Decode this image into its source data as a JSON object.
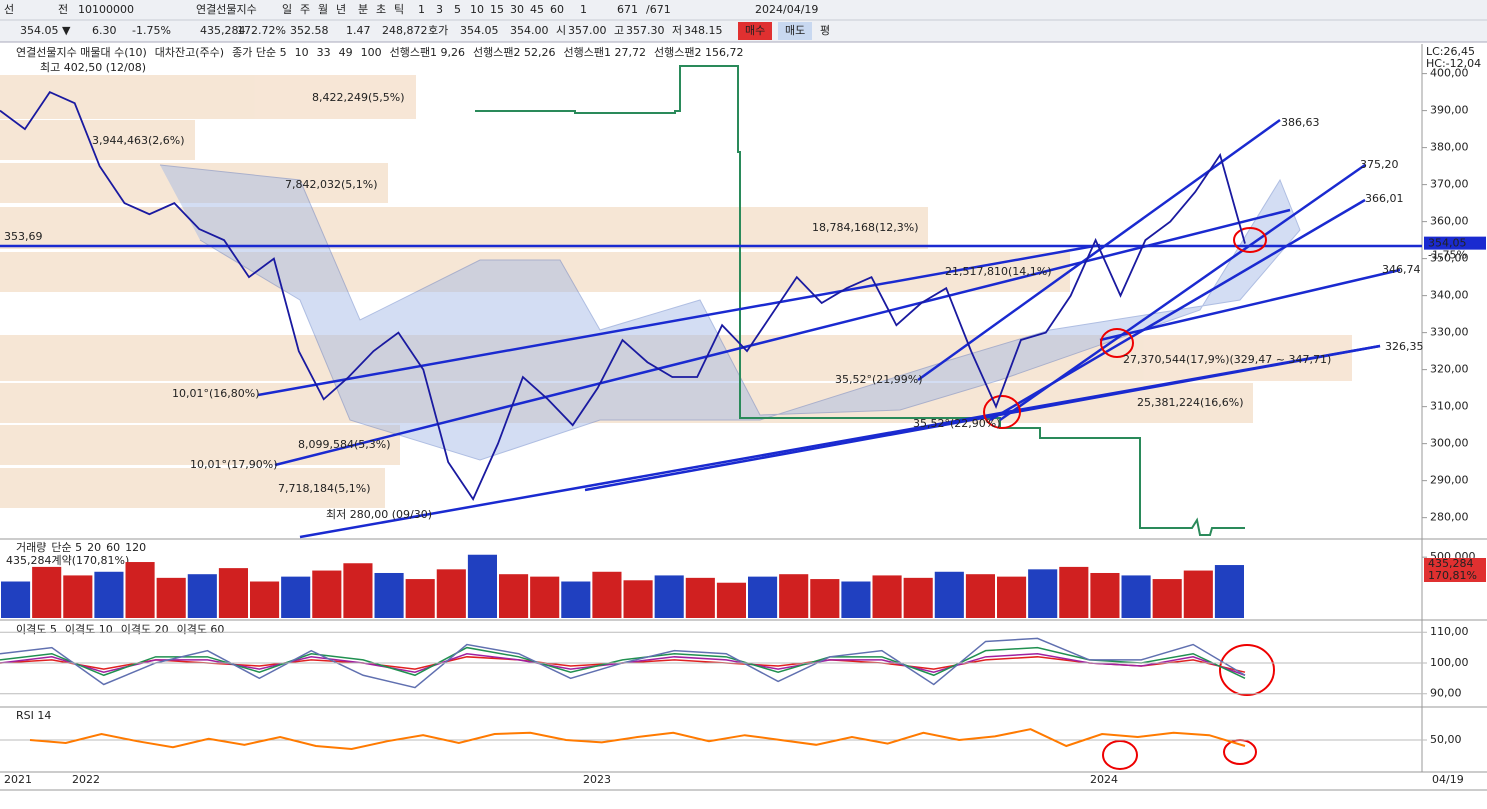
{
  "toolbar": {
    "items": [
      "선",
      "전",
      "10100000",
      "연결선물지수",
      "일",
      "주",
      "월",
      "년",
      "분",
      "초",
      "틱",
      "1",
      "3",
      "5",
      "10",
      "15",
      "30",
      "45",
      "60",
      "1",
      "671",
      "/671",
      "2024/04/19",
      "매수",
      "매도",
      "평"
    ]
  },
  "quote_bar": {
    "items": [
      "354.05 ▼",
      "6.30",
      "-1.75%",
      "435,284",
      "172.72%",
      "352.58",
      "1.47",
      "248,872",
      "호가",
      "354.05",
      "354.00",
      "시",
      "357.00",
      "고",
      "357.30",
      "저",
      "348.15"
    ]
  },
  "price_panel": {
    "legend": [
      {
        "text": "연결선물지수 매물대 수(10)",
        "color": "#222"
      },
      {
        "text": "대차잔고(주수)",
        "color": "#1a8a4a"
      },
      {
        "text": "종가 단순 5",
        "color": "#a020a0"
      },
      {
        "text": "10",
        "color": "#1a1aa0"
      },
      {
        "text": "33",
        "color": "#d0a000"
      },
      {
        "text": "49",
        "color": "#209030"
      },
      {
        "text": "100",
        "color": "#777"
      },
      {
        "text": "선행스팬1 9,26",
        "color": "#e08050"
      },
      {
        "text": "선행스팬2 52,26",
        "color": "#5070c0"
      },
      {
        "text": "선행스팬1 27,72",
        "color": "#e08050"
      },
      {
        "text": "선행스팬2 156,72",
        "color": "#5070c0"
      }
    ],
    "corner": [
      "LC:26,45",
      "HC:-12,04"
    ],
    "ylim": [
      274.5,
      408
    ],
    "yticks": [
      {
        "value": 400,
        "label": "400,00"
      },
      {
        "value": 390,
        "label": "390,00"
      },
      {
        "value": 380,
        "label": "380,00"
      },
      {
        "value": 370,
        "label": "370,00"
      },
      {
        "value": 360,
        "label": "360,00"
      },
      {
        "value": 350,
        "label": "350,00"
      },
      {
        "value": 340,
        "label": "340,00"
      },
      {
        "value": 330,
        "label": "330,00"
      },
      {
        "value": 320,
        "label": "320,00"
      },
      {
        "value": 310,
        "label": "310,00"
      },
      {
        "value": 300,
        "label": "300,00"
      },
      {
        "value": 290,
        "label": "290,00"
      },
      {
        "value": 280,
        "label": "280,00"
      }
    ],
    "close": {
      "color": "#1a1aa0",
      "values": [
        390,
        385,
        395,
        392,
        375,
        365,
        362,
        365,
        358,
        355,
        345,
        350,
        325,
        312,
        318,
        325,
        330,
        320,
        295,
        285,
        300,
        318,
        312,
        305,
        315,
        328,
        322,
        318,
        318,
        332,
        325,
        335,
        345,
        338,
        342,
        345,
        332,
        338,
        342,
        325,
        310,
        328,
        330,
        340,
        355,
        340,
        355,
        360,
        368,
        378,
        354.05
      ]
    },
    "last_price": {
      "value": 354.05,
      "label": "354,05",
      "change": "-1,75%"
    },
    "high_label": "최고 402,50 (12/08)",
    "low_label": "최저 280,00 (09/30)",
    "profile_labels": [
      "8,422,249(5,5%)",
      "3,944,463(2,6%)",
      "7,842,032(5,1%)",
      "18,784,168(12,3%)",
      "21,517,810(14,1%)",
      "27,370,544(17,9%)(329,47 ~ 347,71)",
      "25,381,224(16,6%)",
      "8,099,584(5,3%)",
      "7,718,184(5,1%)"
    ],
    "line_labels": [
      "386,63",
      "375,20",
      "366,01",
      "346,74",
      "326,35",
      "353,69",
      "10,01°(16,80%)",
      "10,01°(17,90%)",
      "35,52°(21,99%)",
      "35,52°(22,90%)"
    ]
  },
  "volume_panel": {
    "legend": [
      "거래량",
      "단순 5",
      "20",
      "60",
      "120"
    ],
    "summary": "435,284계약(170,81%)",
    "box": [
      "435,284",
      "170,81%"
    ],
    "ylim": [
      0,
      600000
    ],
    "yticks": [
      {
        "value": 500000,
        "label": "500,000"
      }
    ],
    "values": [
      300000,
      420000,
      350000,
      380000,
      460000,
      330000,
      360000,
      410000,
      300000,
      340000,
      390000,
      450000,
      370000,
      320000,
      400000,
      520000,
      360000,
      340000,
      300000,
      380000,
      310000,
      350000,
      330000,
      290000,
      340000,
      360000,
      320000,
      300000,
      350000,
      330000,
      380000,
      360000,
      340000,
      400000,
      420000,
      370000,
      350000,
      320000,
      390000,
      435284
    ]
  },
  "disparity_panel": {
    "ylim": [
      86,
      113
    ],
    "yticks": [
      {
        "value": 110,
        "label": "110,00"
      },
      {
        "value": 100,
        "label": "100,00"
      },
      {
        "value": 90,
        "label": "90,00"
      }
    ],
    "series": [
      {
        "name": "이격도 5",
        "color": "#e02020",
        "values": [
          100,
          101,
          98,
          101,
          100,
          99,
          101,
          100,
          98,
          102,
          101,
          99,
          100,
          101,
          100,
          99,
          101,
          100,
          98,
          101,
          102,
          100,
          99,
          101,
          97
        ]
      },
      {
        "name": "이격도 10",
        "color": "#a020a0",
        "values": [
          100,
          102,
          97,
          101,
          101,
          98,
          102,
          100,
          97,
          103,
          101,
          98,
          100,
          102,
          101,
          98,
          101,
          101,
          97,
          102,
          103,
          100,
          99,
          102,
          96
        ]
      },
      {
        "name": "이격도 20",
        "color": "#209050",
        "values": [
          101,
          103,
          96,
          102,
          102,
          97,
          103,
          101,
          96,
          105,
          102,
          97,
          101,
          103,
          102,
          97,
          102,
          102,
          96,
          104,
          105,
          101,
          100,
          103,
          95
        ]
      },
      {
        "name": "이격도 60",
        "color": "#6070b0",
        "values": [
          103,
          105,
          93,
          100,
          104,
          95,
          104,
          96,
          92,
          106,
          103,
          95,
          100,
          104,
          103,
          94,
          102,
          104,
          93,
          107,
          108,
          101,
          101,
          106,
          96
        ]
      }
    ]
  },
  "rsi_panel": {
    "label": "RSI 14",
    "color": "#ff7a00",
    "ylim": [
      0,
      100
    ],
    "yticks": [
      {
        "value": 50,
        "label": "50,00"
      }
    ],
    "values": [
      50,
      45,
      60,
      48,
      38,
      52,
      42,
      55,
      40,
      35,
      48,
      58,
      45,
      60,
      62,
      50,
      46,
      55,
      62,
      48,
      58,
      50,
      42,
      55,
      44,
      62,
      50,
      56,
      68,
      40,
      60,
      55,
      62,
      58,
      40
    ]
  },
  "date_axis": [
    "2021",
    "2022",
    "2023",
    "2024",
    "04/19"
  ]
}
